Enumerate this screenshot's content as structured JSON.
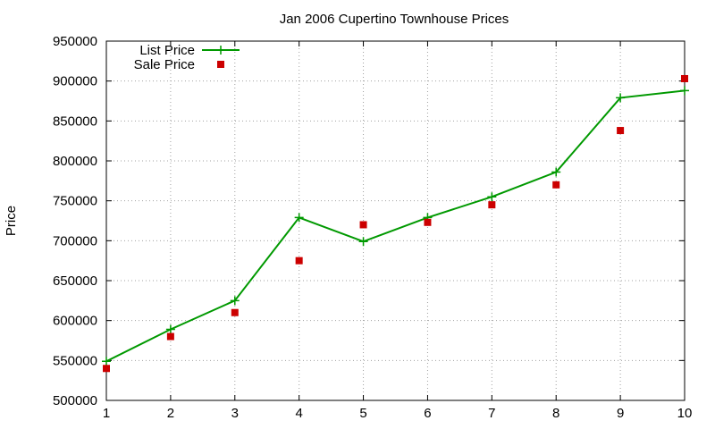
{
  "chart_data": {
    "type": "line",
    "title": "Jan 2006 Cupertino Townhouse Prices",
    "xlabel": "",
    "ylabel": "Price",
    "xlim": [
      1,
      10
    ],
    "ylim": [
      500000,
      950000
    ],
    "x_ticks": [
      1,
      2,
      3,
      4,
      5,
      6,
      7,
      8,
      9,
      10
    ],
    "y_ticks": [
      500000,
      550000,
      600000,
      650000,
      700000,
      750000,
      800000,
      850000,
      900000,
      950000
    ],
    "grid": true,
    "legend_position": "top-left",
    "series": [
      {
        "name": "List Price",
        "style": "line-with-plus-markers",
        "color": "#009900",
        "x": [
          1,
          2,
          3,
          4,
          5,
          6,
          7,
          8,
          9,
          10
        ],
        "values": [
          549000,
          589000,
          625000,
          729000,
          699000,
          729000,
          755000,
          786000,
          879000,
          888000
        ]
      },
      {
        "name": "Sale Price",
        "style": "square-markers",
        "color": "#cc0000",
        "x": [
          1,
          2,
          3,
          4,
          5,
          6,
          7,
          8,
          9,
          10
        ],
        "values": [
          540000,
          580000,
          610000,
          675000,
          720000,
          723000,
          745000,
          770000,
          838000,
          903000
        ]
      }
    ]
  }
}
